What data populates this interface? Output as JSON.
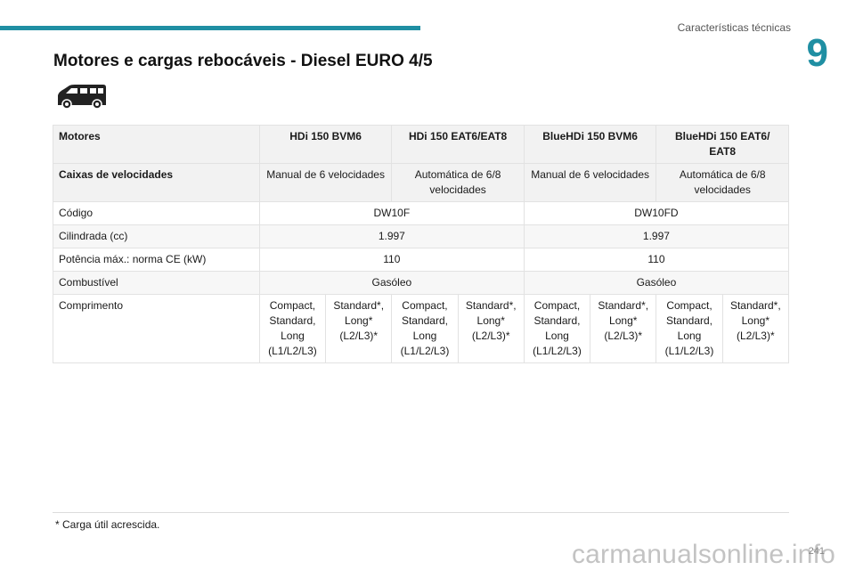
{
  "header": {
    "section_title": "Características técnicas",
    "chapter_number": "9",
    "accent_color": "#1f8fa3"
  },
  "page": {
    "heading": "Motores e cargas rebocáveis - Diesel EURO 4/5",
    "icon": "van-icon"
  },
  "table": {
    "header": {
      "label": "Motores",
      "col1": "HDi 150 BVM6",
      "col2": "HDi 150 EAT6/EAT8",
      "col3": "BlueHDi 150 BVM6",
      "col4": "BlueHDi 150 EAT6/ EAT8"
    },
    "gearbox": {
      "label": "Caixas de velocidades",
      "col1": "Manual de 6 velocidades",
      "col2": "Automática de 6/8 velocidades",
      "col3": "Manual de 6 velocidades",
      "col4": "Automática de 6/8 velocidades"
    },
    "code": {
      "label": "Código",
      "hdi": "DW10F",
      "bluehdi": "DW10FD"
    },
    "displacement": {
      "label": "Cilindrada (cc)",
      "hdi": "1.997",
      "bluehdi": "1.997"
    },
    "power": {
      "label": "Potência máx.: norma CE (kW)",
      "hdi": "110",
      "bluehdi": "110"
    },
    "fuel": {
      "label": "Combustível",
      "hdi": "Gasóleo",
      "bluehdi": "Gasóleo"
    },
    "length": {
      "label": "Comprimento",
      "c1": "Compact, Standard, Long (L1/L2/L3)",
      "c2": "Standard*, Long* (L2/L3)*",
      "c3": "Compact, Standard, Long (L1/L2/L3)",
      "c4": "Standard*, Long* (L2/L3)*",
      "c5": "Compact, Standard, Long (L1/L2/L3)",
      "c6": "Standard*, Long* (L2/L3)*",
      "c7": "Compact, Standard, Long (L1/L2/L3)",
      "c8": "Standard*, Long* (L2/L3)*"
    }
  },
  "footnote": "*  Carga útil acrescida.",
  "page_number": "241",
  "watermark": "carmanualsonline.info"
}
